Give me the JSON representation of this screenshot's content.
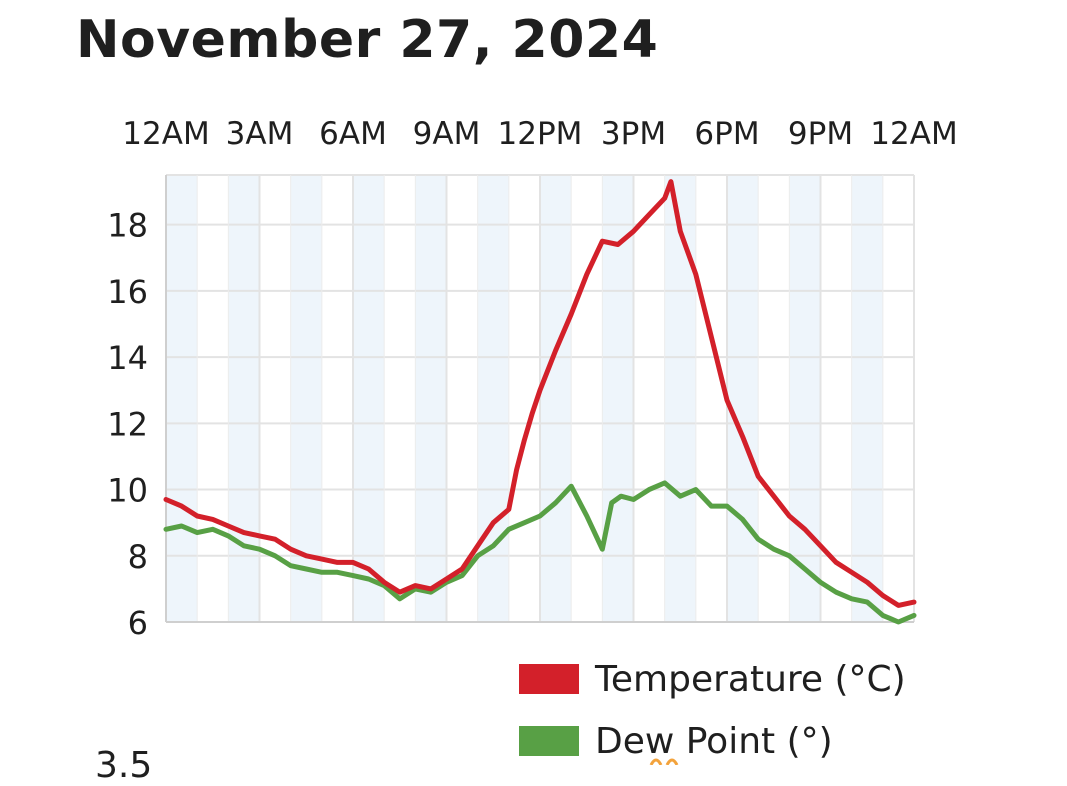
{
  "header": {
    "title": "November 27, 2024"
  },
  "colors": {
    "temperature": "#d3202a",
    "dew_point": "#58a045",
    "band": "#eef5fb",
    "grid": "#e3e3e3",
    "cut_off_mark": "#f3a33c"
  },
  "footer": {
    "cut_text": "3.5"
  },
  "chart_data": {
    "type": "line",
    "title": "",
    "xlabel": "",
    "ylabel": "",
    "x_unit": "hour of day",
    "xlim": [
      0,
      24
    ],
    "ylim": [
      6,
      19.5
    ],
    "x_ticks": [
      0,
      3,
      6,
      9,
      12,
      15,
      18,
      21,
      24
    ],
    "x_tick_labels": [
      "12AM",
      "3AM",
      "6AM",
      "9AM",
      "12PM",
      "3PM",
      "6PM",
      "9PM",
      "12AM"
    ],
    "y_ticks": [
      6,
      8,
      10,
      12,
      14,
      16,
      18
    ],
    "y_tick_labels": [
      "6",
      "8",
      "10",
      "12",
      "14",
      "16",
      "18"
    ],
    "grid": true,
    "shaded_bands_each_hour": true,
    "legend_position": "bottom-right",
    "series": [
      {
        "name": "Temperature (°C)",
        "color": "#d3202a",
        "x": [
          0,
          0.5,
          1,
          1.5,
          2,
          2.5,
          3,
          3.5,
          4,
          4.5,
          5,
          5.5,
          6,
          6.5,
          7,
          7.5,
          8,
          8.5,
          9,
          9.5,
          10,
          10.5,
          11,
          11.25,
          11.5,
          11.75,
          12,
          12.5,
          13,
          13.5,
          14,
          14.5,
          15,
          15.5,
          16,
          16.2,
          16.5,
          17,
          17.5,
          18,
          18.5,
          19,
          19.5,
          20,
          20.5,
          21,
          21.5,
          22,
          22.5,
          23,
          23.5,
          24
        ],
        "y": [
          9.7,
          9.5,
          9.2,
          9.1,
          8.9,
          8.7,
          8.6,
          8.5,
          8.2,
          8.0,
          7.9,
          7.8,
          7.8,
          7.6,
          7.2,
          6.9,
          7.1,
          7.0,
          7.3,
          7.6,
          8.3,
          9.0,
          9.4,
          10.6,
          11.5,
          12.3,
          13.0,
          14.2,
          15.3,
          16.5,
          17.5,
          17.4,
          17.8,
          18.3,
          18.8,
          19.3,
          17.8,
          16.5,
          14.6,
          12.7,
          11.6,
          10.4,
          9.8,
          9.2,
          8.8,
          8.3,
          7.8,
          7.5,
          7.2,
          6.8,
          6.5,
          6.6
        ]
      },
      {
        "name": "Dew Point (°)",
        "color": "#58a045",
        "x": [
          0,
          0.5,
          1,
          1.5,
          2,
          2.5,
          3,
          3.5,
          4,
          4.5,
          5,
          5.5,
          6,
          6.5,
          7,
          7.5,
          8,
          8.5,
          9,
          9.5,
          10,
          10.5,
          11,
          11.5,
          12,
          12.5,
          13,
          13.5,
          14,
          14.3,
          14.6,
          15,
          15.5,
          16,
          16.5,
          17,
          17.5,
          18,
          18.5,
          19,
          19.5,
          20,
          20.5,
          21,
          21.5,
          22,
          22.5,
          23,
          23.5,
          24
        ],
        "y": [
          8.8,
          8.9,
          8.7,
          8.8,
          8.6,
          8.3,
          8.2,
          8.0,
          7.7,
          7.6,
          7.5,
          7.5,
          7.4,
          7.3,
          7.1,
          6.7,
          7.0,
          6.9,
          7.2,
          7.4,
          8.0,
          8.3,
          8.8,
          9.0,
          9.2,
          9.6,
          10.1,
          9.2,
          8.2,
          9.6,
          9.8,
          9.7,
          10.0,
          10.2,
          9.8,
          10.0,
          9.5,
          9.5,
          9.1,
          8.5,
          8.2,
          8.0,
          7.6,
          7.2,
          6.9,
          6.7,
          6.6,
          6.2,
          6.0,
          6.2
        ]
      }
    ]
  }
}
